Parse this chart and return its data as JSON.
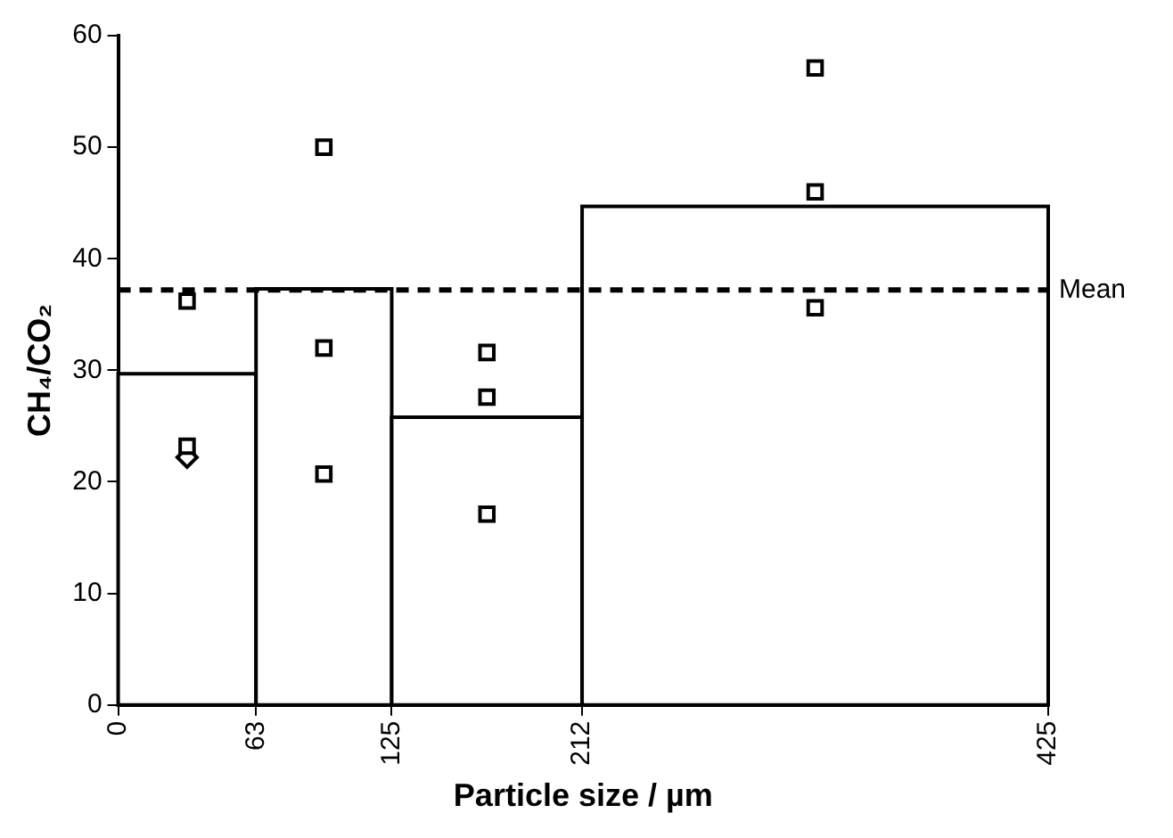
{
  "chart_data": {
    "type": "histogram",
    "xlabel": "Particle size / µm",
    "ylabel": "CH₄/CO₂",
    "bins": [
      0,
      63,
      125,
      212,
      425
    ],
    "values": [
      29.7,
      37.3,
      25.8,
      44.7
    ],
    "color": "#000000",
    "series": [
      {
        "type": "scatter",
        "marker": "square",
        "color": "#000000",
        "x": [
          31.5,
          31.5,
          94,
          94,
          94,
          168.5,
          168.5,
          168.5,
          318.5,
          318.5,
          318.5
        ],
        "values": [
          36.2,
          23.2,
          50.0,
          32.0,
          20.7,
          31.6,
          27.6,
          17.1,
          57.1,
          46.0,
          35.6
        ]
      },
      {
        "type": "scatter",
        "marker": "diamond",
        "color": "#000000",
        "x": [
          31.5
        ],
        "values": [
          22.2
        ]
      }
    ],
    "ref_lines": [
      {
        "axis": "y",
        "value": 37.2,
        "label": "Mean",
        "line_style": "dashed",
        "color": "#000000"
      }
    ],
    "xlim": [
      0,
      425
    ],
    "xticks": [
      0,
      63,
      125,
      212,
      425
    ],
    "ylim": [
      0,
      60
    ],
    "yticks": [
      0,
      10,
      20,
      30,
      40,
      50,
      60
    ],
    "grid": false,
    "legend": false
  }
}
